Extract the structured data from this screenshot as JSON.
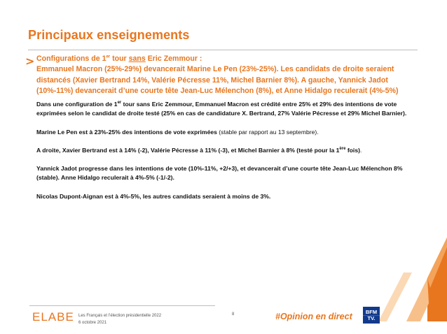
{
  "slide": {
    "title": "Principaux enseignements",
    "summary": {
      "line_a1": "Configurations de 1",
      "line_a_sup": "er",
      "line_a2": " tour ",
      "line_a_u": "sans",
      "line_a3": " Eric Zemmour :",
      "line_b": "Emmanuel Macron (25%-29%) devancerait Marine Le Pen (23%-25%). Les candidats de droite seraient distancés (Xavier Bertrand 14%, Valérie Pécresse 11%, Michel Barnier 8%). A gauche, Yannick Jadot (10%-11%) devancerait d’une courte tête Jean-Luc Mélenchon (8%), et Anne Hidalgo reculerait (4%-5%)"
    },
    "paragraphs": {
      "p1_a": "Dans une configuration de 1",
      "p1_sup": "er",
      "p1_b": " tour sans Eric Zemmour, Emmanuel Macron est crédité entre 25% et 29% des intentions de vote exprimées selon le candidat de droite testé (25% en cas de candidature X. Bertrand, 27% Valérie Pécresse et 29% Michel Barnier).",
      "p2_bold": "Marine Le Pen est à 23%-25% des intentions de vote exprimées",
      "p2_rest": " (stable par rapport au 13 septembre).",
      "p3_bold": "A droite, Xavier Bertrand est à 14% (-2), Valérie Pécresse à 11% (-3), et Michel Barnier à 8% (testé pour la 1",
      "p3_sup": "ère",
      "p3_bold2": " fois)",
      "p3_rest": ".",
      "p4": "Yannick Jadot progresse dans les intentions de vote (10%-11%, +2/+3), et devancerait d’une courte tête Jean-Luc Mélenchon 8% (stable). Anne Hidalgo reculerait à 4%-5% (-1/-2).",
      "p5": "Nicolas Dupont-Aignan est à 4%-5%, les autres candidats seraient à moins de 3%."
    },
    "footer": {
      "logo": "ELABE",
      "study": "Les Français et l’élection présidentielle 2022",
      "date": "6 octobre 2021",
      "page": "8",
      "hashtag": "#Opinion en direct",
      "partner_top": "BFM",
      "partner_bottom": "TV."
    },
    "colors": {
      "accent": "#e8761e",
      "text": "#111111",
      "partner_blue": "#123a8c"
    }
  }
}
